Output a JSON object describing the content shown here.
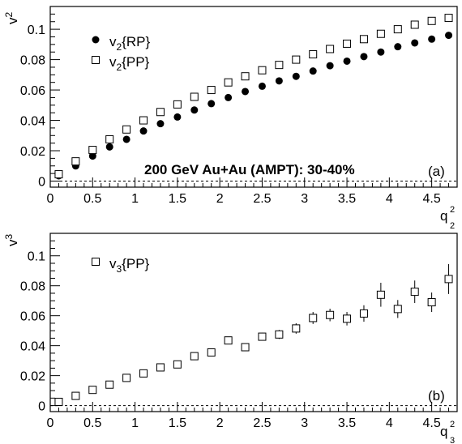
{
  "chart_data": [
    {
      "type": "scatter",
      "panel_label": "(a)",
      "annotation": "200 GeV Au+Au (AMPT): 30-40%",
      "ylabel": {
        "base": "v",
        "sub": "2"
      },
      "xlabel": {
        "base": "q",
        "sup": "2",
        "sub": "2"
      },
      "xlim": [
        0,
        4.8
      ],
      "ylim": [
        -0.004,
        0.115
      ],
      "xticks": [
        "0",
        "0.5",
        "1",
        "1.5",
        "2",
        "2.5",
        "3",
        "3.5",
        "4",
        "4.5"
      ],
      "yticks": [
        "0",
        "0.02",
        "0.04",
        "0.06",
        "0.08",
        "0.1"
      ],
      "legend": {
        "position": "top-left",
        "entries": [
          {
            "base": "v",
            "sub": "2",
            "rest": "{RP}"
          },
          {
            "base": "v",
            "sub": "2",
            "rest": "{PP}"
          }
        ]
      },
      "series": [
        {
          "name": "v2{RP}",
          "marker": "filled-circle",
          "color": "#000000",
          "x": [
            0.1,
            0.3,
            0.5,
            0.7,
            0.9,
            1.1,
            1.3,
            1.5,
            1.7,
            1.9,
            2.1,
            2.3,
            2.5,
            2.7,
            2.9,
            3.1,
            3.3,
            3.5,
            3.7,
            3.9,
            4.1,
            4.3,
            4.5,
            4.7
          ],
          "y": [
            0.0035,
            0.01,
            0.0165,
            0.0225,
            0.0275,
            0.033,
            0.0378,
            0.0422,
            0.0468,
            0.051,
            0.055,
            0.059,
            0.0625,
            0.066,
            0.069,
            0.0725,
            0.076,
            0.079,
            0.082,
            0.085,
            0.0885,
            0.091,
            0.0935,
            0.096
          ]
        },
        {
          "name": "v2{PP}",
          "marker": "open-square",
          "color": "#000000",
          "x": [
            0.1,
            0.3,
            0.5,
            0.7,
            0.9,
            1.1,
            1.3,
            1.5,
            1.7,
            1.9,
            2.1,
            2.3,
            2.5,
            2.7,
            2.9,
            3.1,
            3.3,
            3.5,
            3.7,
            3.9,
            4.1,
            4.3,
            4.5,
            4.7
          ],
          "y": [
            0.0045,
            0.013,
            0.0205,
            0.0275,
            0.034,
            0.04,
            0.0455,
            0.0505,
            0.0555,
            0.06,
            0.065,
            0.069,
            0.073,
            0.0765,
            0.08,
            0.0835,
            0.087,
            0.0905,
            0.0935,
            0.097,
            0.1,
            0.103,
            0.1055,
            0.1075
          ]
        }
      ]
    },
    {
      "type": "scatter",
      "panel_label": "(b)",
      "ylabel": {
        "base": "v",
        "sub": "3"
      },
      "xlabel": {
        "base": "q",
        "sup": "2",
        "sub": "3"
      },
      "xlim": [
        0,
        4.8
      ],
      "ylim": [
        -0.004,
        0.115
      ],
      "xticks": [
        "0",
        "0.5",
        "1",
        "1.5",
        "2",
        "2.5",
        "3",
        "3.5",
        "4",
        "4.5"
      ],
      "yticks": [
        "0",
        "0.02",
        "0.04",
        "0.06",
        "0.08",
        "0.1"
      ],
      "legend": {
        "position": "top-left",
        "entries": [
          {
            "base": "v",
            "sub": "3",
            "rest": "{PP}"
          }
        ]
      },
      "series": [
        {
          "name": "v3{PP}",
          "marker": "open-square",
          "color": "#000000",
          "x": [
            0.1,
            0.3,
            0.5,
            0.7,
            0.9,
            1.1,
            1.3,
            1.5,
            1.7,
            1.9,
            2.1,
            2.3,
            2.5,
            2.7,
            2.9,
            3.1,
            3.3,
            3.5,
            3.7,
            3.9,
            4.1,
            4.3,
            4.5,
            4.7
          ],
          "y": [
            0.0025,
            0.0065,
            0.0105,
            0.014,
            0.0185,
            0.0215,
            0.0255,
            0.0275,
            0.033,
            0.0355,
            0.0435,
            0.039,
            0.046,
            0.0475,
            0.0515,
            0.0585,
            0.0605,
            0.058,
            0.0615,
            0.074,
            0.0645,
            0.076,
            0.069,
            0.0845
          ],
          "err": [
            0.0008,
            0.001,
            0.0012,
            0.0012,
            0.0013,
            0.0015,
            0.0015,
            0.0017,
            0.0018,
            0.002,
            0.0022,
            0.0025,
            0.0026,
            0.003,
            0.0035,
            0.004,
            0.0042,
            0.0045,
            0.0055,
            0.008,
            0.006,
            0.0075,
            0.0065,
            0.01
          ]
        }
      ]
    }
  ]
}
